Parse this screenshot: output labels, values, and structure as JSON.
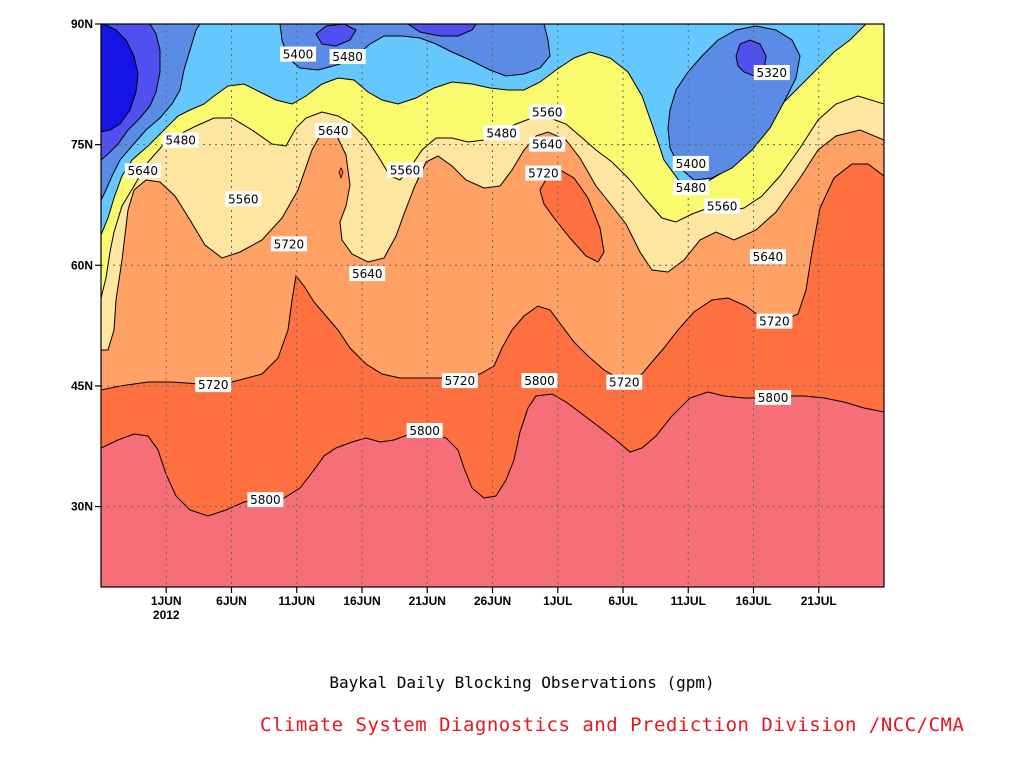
{
  "chart_data": {
    "type": "contour",
    "title": "",
    "xlabel": "",
    "ylabel": "",
    "caption": "Baykal Daily Blocking Observations (gpm)",
    "credit": "Climate System Diagnostics and Prediction Division /NCC/CMA",
    "x_ticks": [
      "1JUN",
      "6JUN",
      "11JUN",
      "16JUN",
      "21JUN",
      "26JUN",
      "1JUL",
      "6JUL",
      "11JUL",
      "16JUL",
      "21JUL"
    ],
    "x_tick_days": [
      1,
      6,
      11,
      16,
      21,
      26,
      31,
      36,
      41,
      46,
      51
    ],
    "x_year_label": "2012",
    "xlim_days": [
      -4,
      56
    ],
    "y_ticks": [
      "30N",
      "45N",
      "60N",
      "75N",
      "90N"
    ],
    "y_tick_values": [
      30,
      45,
      60,
      75,
      90
    ],
    "ylim": [
      20,
      90
    ],
    "grid": true,
    "levels": [
      5320,
      5400,
      5480,
      5560,
      5640,
      5720,
      5800
    ],
    "level_colors": {
      "5240": "#1414e6",
      "5320": "#5050f0",
      "5400": "#5a8ce6",
      "5480": "#64c8ff",
      "5560": "#fafa6e",
      "5640": "#ffe6a0",
      "5720": "#ffa064",
      "5800": "#ff7040",
      "5880": "#f56e78"
    },
    "contour_labels": [
      {
        "value": "5400",
        "day": 11.1,
        "lat": 86.2
      },
      {
        "value": "5480",
        "day": 14.9,
        "lat": 85.9
      },
      {
        "value": "5480",
        "day": 2.1,
        "lat": 75.5
      },
      {
        "value": "5640",
        "day": -0.8,
        "lat": 71.7
      },
      {
        "value": "5560",
        "day": 6.9,
        "lat": 68.2
      },
      {
        "value": "5640",
        "day": 13.8,
        "lat": 76.7
      },
      {
        "value": "5560",
        "day": 19.3,
        "lat": 71.8
      },
      {
        "value": "5720",
        "day": 10.4,
        "lat": 62.6
      },
      {
        "value": "5640",
        "day": 16.4,
        "lat": 58.9
      },
      {
        "value": "5480",
        "day": 26.7,
        "lat": 76.4
      },
      {
        "value": "5560",
        "day": 30.2,
        "lat": 79.0
      },
      {
        "value": "5640",
        "day": 30.2,
        "lat": 75.0
      },
      {
        "value": "5720",
        "day": 29.9,
        "lat": 71.4
      },
      {
        "value": "5320",
        "day": 47.4,
        "lat": 83.9
      },
      {
        "value": "5400",
        "day": 41.2,
        "lat": 72.6
      },
      {
        "value": "5480",
        "day": 41.2,
        "lat": 69.6
      },
      {
        "value": "5560",
        "day": 43.6,
        "lat": 67.3
      },
      {
        "value": "5640",
        "day": 47.1,
        "lat": 61.0
      },
      {
        "value": "5720",
        "day": 47.6,
        "lat": 53.0
      },
      {
        "value": "5720",
        "day": 4.6,
        "lat": 45.1
      },
      {
        "value": "5720",
        "day": 23.5,
        "lat": 45.6
      },
      {
        "value": "5800",
        "day": 29.6,
        "lat": 45.6
      },
      {
        "value": "5720",
        "day": 36.1,
        "lat": 45.4
      },
      {
        "value": "5800",
        "day": 47.5,
        "lat": 43.5
      },
      {
        "value": "5800",
        "day": 20.8,
        "lat": 39.4
      },
      {
        "value": "5800",
        "day": 8.6,
        "lat": 30.8
      }
    ]
  }
}
